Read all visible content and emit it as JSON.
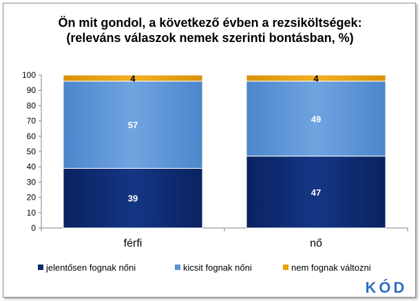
{
  "chart_data": {
    "type": "bar",
    "stacked": true,
    "title_lines": [
      "Ön mit gondol, a következő évben a rezsiköltségek:",
      "(releváns válaszok nemek szerinti bontásban, %)"
    ],
    "categories": [
      "férfi",
      "nő"
    ],
    "series": [
      {
        "name": "jelentősen fognak nőni",
        "values": [
          39,
          47
        ],
        "color": "#0d2a6b"
      },
      {
        "name": "kicsit fognak nőni",
        "values": [
          57,
          49
        ],
        "color": "#5b93d6"
      },
      {
        "name": "nem fognak változni",
        "values": [
          4,
          4
        ],
        "color": "#e8a20c"
      }
    ],
    "ylim": [
      0,
      100
    ],
    "yticks": [
      0,
      10,
      20,
      30,
      40,
      50,
      60,
      70,
      80,
      90,
      100
    ],
    "grid": false,
    "legend": "bottom"
  },
  "logo": {
    "text": "KÓD"
  }
}
